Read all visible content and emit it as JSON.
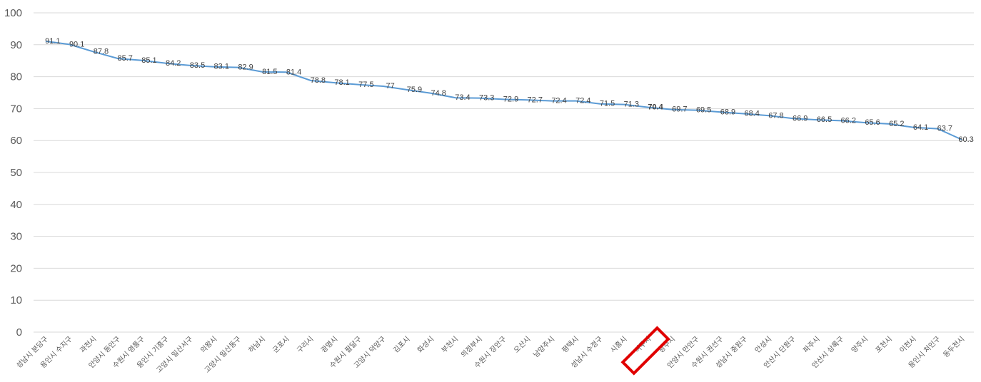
{
  "chart_data": {
    "type": "line",
    "title": "",
    "xlabel": "",
    "ylabel": "",
    "ylim": [
      0,
      100
    ],
    "yticks": [
      0,
      10,
      20,
      30,
      40,
      50,
      60,
      70,
      80,
      90,
      100
    ],
    "grid": true,
    "legend": "none",
    "line_color": "#5B9BD5",
    "highlight_color": "#E00000",
    "highlight_category": "여주시",
    "categories": [
      "성남시 분당구",
      "용인시 수지구",
      "과천시",
      "안양시 동안구",
      "수원시 영통구",
      "용인시 기흥구",
      "고양시 일산서구",
      "의왕시",
      "고양시 일산동구",
      "하남시",
      "군포시",
      "구리시",
      "광명시",
      "수원시 팔달구",
      "고양시 덕양구",
      "김포시",
      "화성시",
      "부천시",
      "의정부시",
      "수원시 장안구",
      "오산시",
      "남양주시",
      "평택시",
      "성남시 수정구",
      "시흥시",
      "여주시",
      "광주시",
      "안양시 만안구",
      "수원시 권선구",
      "성남시 중원구",
      "안성시",
      "안산시 단원구",
      "파주시",
      "안산시 상록구",
      "양주시",
      "포천시",
      "이천시",
      "용인시 처인구",
      "동두천시"
    ],
    "values": [
      91.1,
      90.1,
      87.8,
      85.7,
      85.1,
      84.2,
      83.5,
      83.1,
      82.9,
      81.5,
      81.4,
      78.8,
      78.1,
      77.5,
      77,
      75.9,
      74.8,
      73.4,
      73.3,
      72.9,
      72.7,
      72.4,
      72.4,
      71.5,
      71.3,
      70.4,
      69.7,
      69.5,
      68.9,
      68.4,
      67.8,
      66.9,
      66.5,
      66.2,
      65.6,
      65.2,
      64.1,
      63.7,
      60.3
    ]
  }
}
